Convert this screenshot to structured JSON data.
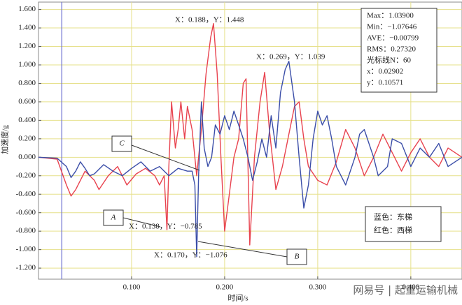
{
  "chart_data": {
    "type": "line",
    "y_label": "加速度/g",
    "x_label": "时间/s",
    "xlim": [
      0,
      0.455
    ],
    "ylim": [
      -1.32,
      1.68
    ],
    "xticks": [
      {
        "value": 0.1,
        "label": "0.100"
      },
      {
        "value": 0.2,
        "label": "0.200"
      },
      {
        "value": 0.3,
        "label": "0.300"
      },
      {
        "value": 0.4,
        "label": "0.400"
      }
    ],
    "yticks": [
      {
        "value": -1.2,
        "label": "-1.200"
      },
      {
        "value": -1.0,
        "label": "-1.000"
      },
      {
        "value": -0.8,
        "label": "-0.800"
      },
      {
        "value": -0.6,
        "label": "-0.600"
      },
      {
        "value": -0.4,
        "label": "-0.400"
      },
      {
        "value": -0.2,
        "label": "-0.200"
      },
      {
        "value": 0,
        "label": "0.000"
      },
      {
        "value": 0.2,
        "label": "0.200"
      },
      {
        "value": 0.4,
        "label": "0.400"
      },
      {
        "value": 0.6,
        "label": "0.600"
      },
      {
        "value": 0.8,
        "label": "0.800"
      },
      {
        "value": 1.0,
        "label": "1.000"
      },
      {
        "value": 1.2,
        "label": "1.200"
      },
      {
        "value": 1.4,
        "label": "1.400"
      },
      {
        "value": 1.6,
        "label": "1.600"
      }
    ],
    "grid": true,
    "cursor_x": 0.025,
    "cursor_color": "#6a6fd0",
    "series": [
      {
        "name": "东梯",
        "color": "#3b4ea8",
        "x": [
          0,
          0.02,
          0.03,
          0.035,
          0.04,
          0.045,
          0.05,
          0.055,
          0.06,
          0.07,
          0.08,
          0.09,
          0.1,
          0.11,
          0.12,
          0.13,
          0.14,
          0.15,
          0.16,
          0.165,
          0.168,
          0.17,
          0.172,
          0.175,
          0.178,
          0.182,
          0.186,
          0.19,
          0.195,
          0.2,
          0.205,
          0.21,
          0.215,
          0.22,
          0.225,
          0.23,
          0.235,
          0.24,
          0.245,
          0.25,
          0.255,
          0.26,
          0.265,
          0.269,
          0.275,
          0.28,
          0.285,
          0.29,
          0.295,
          0.3,
          0.305,
          0.31,
          0.315,
          0.32,
          0.33,
          0.34,
          0.345,
          0.35,
          0.36,
          0.365,
          0.375,
          0.38,
          0.39,
          0.4,
          0.41,
          0.42,
          0.43,
          0.44,
          0.455
        ],
        "values": [
          0,
          -0.01,
          -0.1,
          -0.22,
          -0.15,
          -0.05,
          -0.12,
          -0.2,
          -0.18,
          -0.08,
          -0.15,
          -0.2,
          -0.12,
          -0.05,
          -0.15,
          -0.1,
          -0.2,
          -0.12,
          -0.15,
          -0.15,
          -0.3,
          -1.076,
          -0.2,
          0.6,
          0.1,
          -0.1,
          0,
          0.35,
          0.25,
          0.45,
          0.3,
          0.5,
          0.35,
          0.2,
          0,
          -0.25,
          -0.05,
          0.2,
          0,
          0.45,
          0.1,
          0.7,
          0.95,
          1.039,
          0.6,
          0,
          -0.55,
          -0.3,
          0.2,
          0.5,
          0.35,
          0.45,
          0.2,
          -0.1,
          -0.3,
          0,
          0.25,
          0.3,
          0,
          -0.2,
          -0.1,
          0.2,
          0.15,
          -0.1,
          0.1,
          0,
          0.15,
          -0.1,
          0
        ]
      },
      {
        "name": "西梯",
        "color": "#e8434f",
        "x": [
          0,
          0.02,
          0.03,
          0.035,
          0.04,
          0.05,
          0.06,
          0.065,
          0.075,
          0.085,
          0.095,
          0.105,
          0.115,
          0.125,
          0.13,
          0.135,
          0.138,
          0.14,
          0.143,
          0.147,
          0.15,
          0.153,
          0.157,
          0.16,
          0.165,
          0.17,
          0.175,
          0.18,
          0.185,
          0.188,
          0.192,
          0.196,
          0.2,
          0.205,
          0.21,
          0.215,
          0.22,
          0.223,
          0.227,
          0.232,
          0.238,
          0.243,
          0.248,
          0.255,
          0.262,
          0.27,
          0.275,
          0.28,
          0.285,
          0.29,
          0.3,
          0.31,
          0.32,
          0.33,
          0.34,
          0.35,
          0.36,
          0.37,
          0.38,
          0.39,
          0.4,
          0.41,
          0.42,
          0.43,
          0.44,
          0.455
        ],
        "values": [
          0,
          -0.02,
          -0.3,
          -0.42,
          -0.35,
          -0.15,
          -0.25,
          -0.35,
          -0.2,
          -0.1,
          -0.3,
          -0.18,
          -0.12,
          -0.2,
          -0.3,
          -0.2,
          -0.785,
          -0.1,
          0.6,
          0.1,
          0.3,
          0.6,
          0.2,
          0.55,
          0.3,
          -0.2,
          0.3,
          0.9,
          1.3,
          1.448,
          0.9,
          0,
          -0.8,
          -0.4,
          0,
          0.2,
          0.8,
          0.85,
          -0.95,
          0,
          0.6,
          0.92,
          0.3,
          -0.35,
          -0.1,
          0.3,
          0.55,
          0.6,
          0.2,
          -0.1,
          -0.25,
          -0.3,
          -0.05,
          0.3,
          0.1,
          -0.2,
          0,
          0.25,
          0.05,
          -0.15,
          0.05,
          0.2,
          0,
          -0.1,
          0.1,
          0
        ]
      }
    ],
    "annotations": [
      "X：0.188，Y：1.448",
      "X：0.269，Y：1.039",
      "X：0.138，Y：−0.785",
      "X：0.170，Y：−1.076"
    ],
    "callouts": [
      "A",
      "B",
      "C"
    ],
    "stats": [
      "Max：1.03900",
      "Min：−1.07646",
      "AVE：−0.00799",
      "RMS：0.27320",
      "光标线N：60",
      "x：0.02902",
      "y：0.10571"
    ],
    "legend_text": [
      "蓝色：东梯",
      "红色：西梯"
    ],
    "watermark": "网易号 | 起重运输机械"
  }
}
